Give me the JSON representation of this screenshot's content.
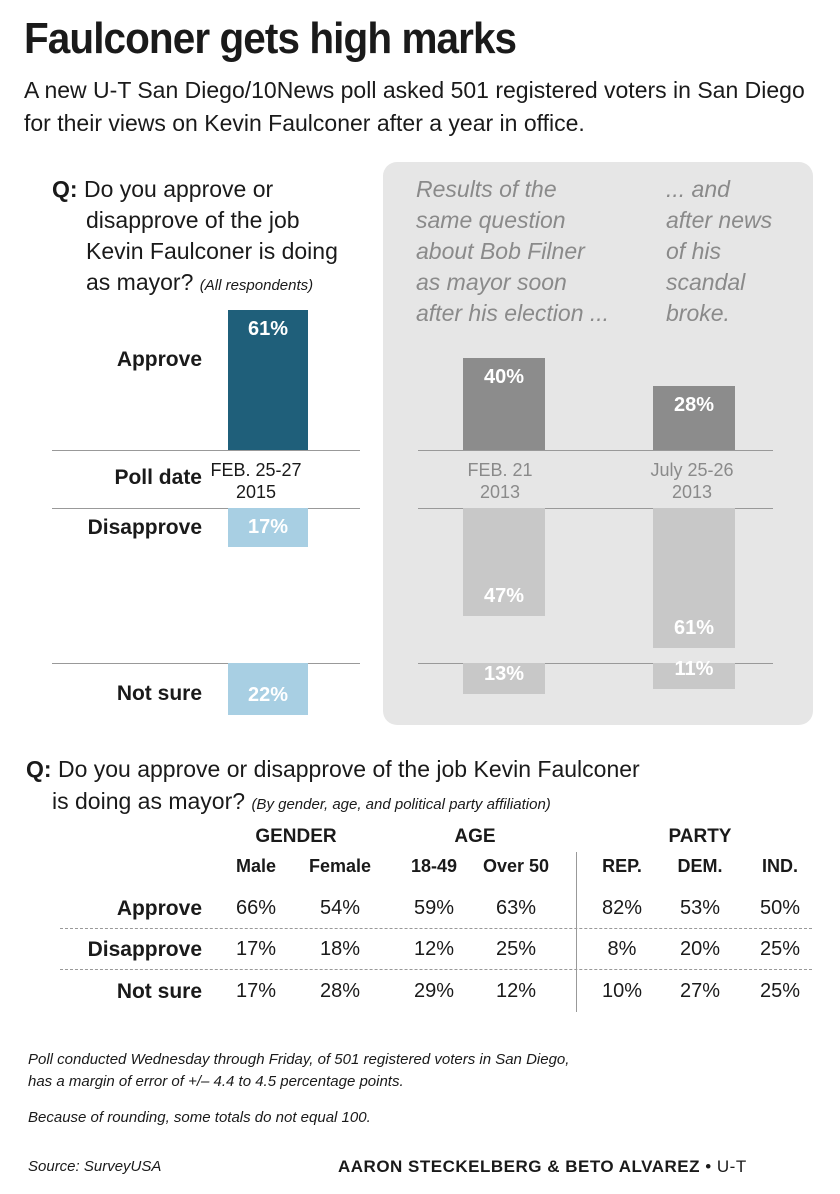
{
  "header": {
    "title": "Faulconer gets high marks",
    "subtitle": "A new U-T San Diego/10News poll asked 501 registered voters in San Diego for their views on Kevin Faulconer after a year in office."
  },
  "q1": {
    "prefix": "Q:",
    "lines": [
      "Do you approve or",
      "disapprove of the job",
      "Kevin Faulconer is doing",
      "as mayor?"
    ],
    "note": "(All respondents)"
  },
  "filner": {
    "intro_lines": [
      "Results of the",
      "same question",
      "about Bob Filner",
      "as mayor soon",
      "after his election ..."
    ],
    "after_lines": [
      "... and",
      "after news",
      "of his",
      "scandal",
      "broke."
    ]
  },
  "row_labels": {
    "approve": "Approve",
    "poll_date": "Poll date",
    "disapprove": "Disapprove",
    "not_sure": "Not sure"
  },
  "colors": {
    "faulconer_approve": "#1f5f7a",
    "faulconer_other": "#a8cfe3",
    "filner_approve": "#8c8c8c",
    "filner_other": "#c8c8c8",
    "panel": "#e6e6e6"
  },
  "chart_data": {
    "type": "bar",
    "categories": [
      "Approve",
      "Disapprove",
      "Not sure"
    ],
    "series": [
      {
        "date_line1": "FEB. 25-27",
        "date_line2": "2015",
        "values": [
          61,
          17,
          22
        ]
      },
      {
        "date_line1": "FEB. 21",
        "date_line2": "2013",
        "values": [
          40,
          47,
          13
        ]
      },
      {
        "date_line1": "July 25-26",
        "date_line2": "2013",
        "values": [
          28,
          61,
          11
        ]
      }
    ]
  },
  "q2": {
    "prefix": "Q:",
    "line1": "Do you approve or disapprove of the job Kevin Faulconer",
    "line2": "is doing as mayor?",
    "note": "(By gender, age, and political party affiliation)"
  },
  "table": {
    "groups": [
      "GENDER",
      "AGE",
      "PARTY"
    ],
    "columns": [
      "Male",
      "Female",
      "18-49",
      "Over 50",
      "REP.",
      "DEM.",
      "IND."
    ],
    "rows": [
      {
        "label": "Approve",
        "values": [
          "66%",
          "54%",
          "59%",
          "63%",
          "82%",
          "53%",
          "50%"
        ]
      },
      {
        "label": "Disapprove",
        "values": [
          "17%",
          "18%",
          "12%",
          "25%",
          "8%",
          "20%",
          "25%"
        ]
      },
      {
        "label": "Not sure",
        "values": [
          "17%",
          "28%",
          "29%",
          "12%",
          "10%",
          "27%",
          "25%"
        ]
      }
    ]
  },
  "footnotes": {
    "line1": "Poll conducted Wednesday through Friday, of 501 registered voters in San Diego,",
    "line2": "has a margin of error of +/– 4.4 to 4.5  percentage points.",
    "line3": "Because of rounding, some totals do not equal 100."
  },
  "footer": {
    "source": "Source: SurveyUSA",
    "credit": "AARON STECKELBERG & BETO ALVAREZ",
    "outlet": "• U-T"
  }
}
